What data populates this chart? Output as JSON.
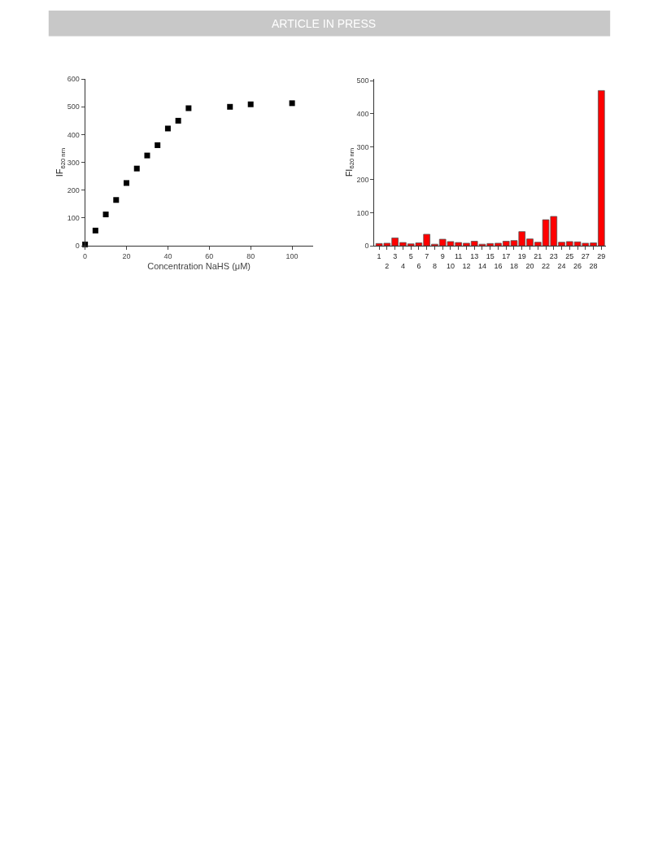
{
  "chart_data": [
    {
      "type": "scatter",
      "xlabel": "Concentration NaHS (μM)",
      "ylabel": "IF$_{620 nm}$",
      "annotations": [
        "ARTICLE IN PRESS"
      ],
      "x": [
        0,
        5,
        10,
        15,
        20,
        25,
        30,
        35,
        40,
        45,
        50,
        70,
        80,
        100
      ],
      "series": [
        {
          "color": "#000000",
          "values": [
            5,
            55,
            113,
            165,
            226,
            278,
            325,
            362,
            422,
            450,
            495,
            500,
            509,
            513
          ]
        }
      ],
      "marker": "square",
      "xlim": [
        0,
        110
      ],
      "xticks": [
        0,
        20,
        40,
        60,
        80,
        100
      ],
      "ylim": [
        0,
        600
      ],
      "yticks": [
        0,
        100,
        200,
        300,
        400,
        500,
        600
      ]
    },
    {
      "type": "bar",
      "ylabel": "FI$_{620 nm}$",
      "categories": [
        "1",
        "2",
        "3",
        "4",
        "5",
        "6",
        "7",
        "8",
        "9",
        "10",
        "11",
        "12",
        "13",
        "14",
        "15",
        "16",
        "17",
        "18",
        "19",
        "20",
        "21",
        "22",
        "23",
        "24",
        "25",
        "26",
        "27",
        "28",
        "29"
      ],
      "series": [
        {
          "color": "#ff0000",
          "values": [
            7,
            8,
            24,
            10,
            6,
            9,
            35,
            5,
            20,
            13,
            10,
            8,
            14,
            5,
            7,
            8,
            14,
            16,
            43,
            21,
            11,
            79,
            89,
            11,
            13,
            12,
            8,
            9,
            470
          ]
        }
      ],
      "ylim": [
        0,
        505
      ],
      "yticks": [
        0,
        100,
        200,
        300,
        400,
        500
      ]
    }
  ]
}
